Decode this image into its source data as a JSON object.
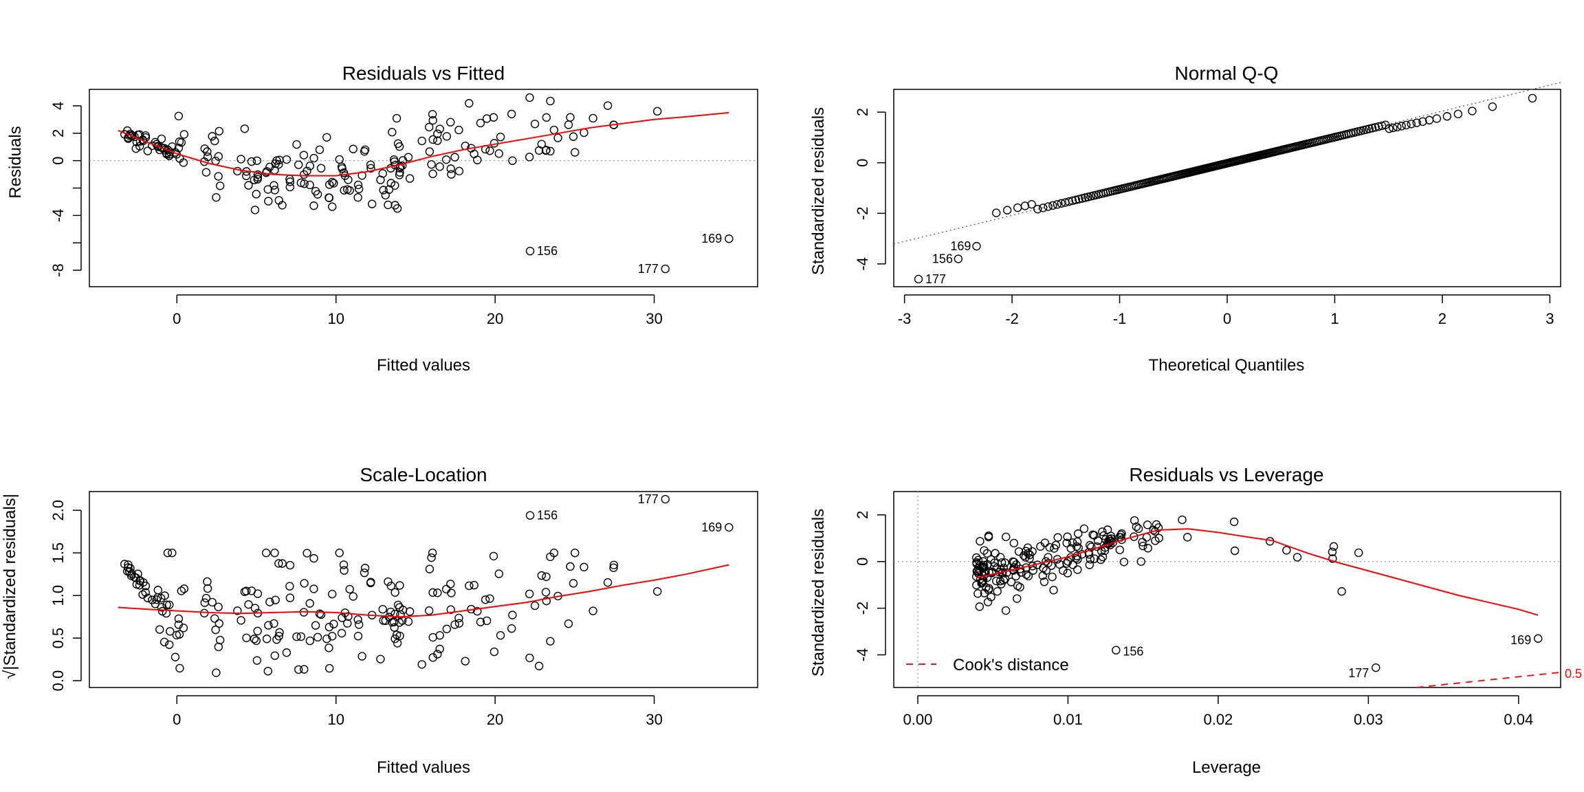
{
  "chart_data": [
    {
      "type": "scatter",
      "title": "Residuals vs Fitted",
      "xlabel": "Fitted values",
      "ylabel": "Residuals",
      "xlim": [
        -5.5,
        36.5
      ],
      "ylim": [
        -9.2,
        5.2
      ],
      "xticks": [
        0,
        10,
        20,
        30
      ],
      "yticks": [
        -8,
        -4,
        0,
        2,
        4
      ],
      "hline": 0,
      "labeled_points": [
        {
          "label": "156",
          "x": 22.2,
          "y": -6.6
        },
        {
          "label": "177",
          "x": 30.7,
          "y": -7.9
        },
        {
          "label": "169",
          "x": 34.7,
          "y": -5.7
        }
      ],
      "smooth": {
        "x": [
          -3.7,
          -2,
          0,
          2,
          4,
          6,
          8,
          10,
          12,
          14,
          16,
          18,
          20,
          22,
          24,
          26,
          28,
          30,
          32,
          34.7
        ],
        "y": [
          2.2,
          1.4,
          0.5,
          -0.2,
          -0.7,
          -1.0,
          -1.1,
          -1.1,
          -0.8,
          -0.3,
          0.3,
          0.8,
          1.2,
          1.6,
          2.0,
          2.4,
          2.7,
          3.0,
          3.2,
          3.5
        ]
      }
    },
    {
      "type": "scatter",
      "title": "Normal Q-Q",
      "xlabel": "Theoretical Quantiles",
      "ylabel": "Standardized residuals",
      "xlim": [
        -3.1,
        3.1
      ],
      "ylim": [
        -4.9,
        2.9
      ],
      "xticks": [
        -3,
        -2,
        -1,
        0,
        1,
        2,
        3
      ],
      "yticks": [
        -4,
        -2,
        0,
        2
      ],
      "labeled_points": [
        {
          "label": "169",
          "x": -2.33,
          "y": -3.3
        },
        {
          "label": "156",
          "x": -2.5,
          "y": -3.8
        },
        {
          "label": "177",
          "x": -2.87,
          "y": -4.6
        }
      ],
      "reference_line": {
        "slope": 1.03,
        "intercept": -0.02
      }
    },
    {
      "type": "scatter",
      "title": "Scale-Location",
      "xlabel": "Fitted values",
      "ylabel": "√|Standardized residuals|",
      "xlim": [
        -5.5,
        36.5
      ],
      "ylim": [
        -0.08,
        2.22
      ],
      "xticks": [
        0,
        10,
        20,
        30
      ],
      "yticks": [
        0.0,
        0.5,
        1.0,
        1.5,
        2.0
      ],
      "labeled_points": [
        {
          "label": "156",
          "x": 22.2,
          "y": 1.94
        },
        {
          "label": "177",
          "x": 30.7,
          "y": 2.13
        },
        {
          "label": "169",
          "x": 34.7,
          "y": 1.8
        }
      ],
      "smooth": {
        "x": [
          -3.7,
          -2,
          0,
          2,
          4,
          6,
          8,
          10,
          12,
          14,
          16,
          18,
          20,
          22,
          24,
          26,
          28,
          30,
          32,
          34.7
        ],
        "y": [
          0.86,
          0.84,
          0.82,
          0.8,
          0.79,
          0.8,
          0.81,
          0.8,
          0.77,
          0.75,
          0.77,
          0.82,
          0.87,
          0.92,
          0.99,
          1.05,
          1.12,
          1.18,
          1.25,
          1.36
        ]
      }
    },
    {
      "type": "scatter",
      "title": "Residuals vs Leverage",
      "xlabel": "Leverage",
      "ylabel": "Standardized residuals",
      "xlim": [
        -0.0016,
        0.0428
      ],
      "ylim": [
        -5.4,
        3.0
      ],
      "xticks": [
        0.0,
        0.01,
        0.02,
        0.03,
        0.04
      ],
      "xtick_labels": [
        "0.00",
        "0.01",
        "0.02",
        "0.03",
        "0.04"
      ],
      "yticks": [
        -4,
        -2,
        0,
        2
      ],
      "hline": 0,
      "vline": 0,
      "labeled_points": [
        {
          "label": "156",
          "x": 0.0132,
          "y": -3.8
        },
        {
          "label": "177",
          "x": 0.0305,
          "y": -4.55
        },
        {
          "label": "169",
          "x": 0.0413,
          "y": -3.3
        }
      ],
      "smooth": {
        "x": [
          0.0039,
          0.006,
          0.008,
          0.01,
          0.012,
          0.014,
          0.016,
          0.018,
          0.02,
          0.022,
          0.0236,
          0.026,
          0.028,
          0.03,
          0.032,
          0.034,
          0.036,
          0.038,
          0.04,
          0.0413
        ],
        "y": [
          -0.7,
          -0.4,
          -0.1,
          0.2,
          0.6,
          1.0,
          1.35,
          1.4,
          1.25,
          1.05,
          0.9,
          0.35,
          -0.05,
          -0.4,
          -0.75,
          -1.1,
          -1.45,
          -1.75,
          -2.05,
          -2.3
        ]
      },
      "cooks_distance": {
        "level": 0.5,
        "label": "0.5",
        "x": [
          0.0332,
          0.0428
        ],
        "y": [
          -5.4,
          -4.75
        ]
      },
      "legend": {
        "label": "Cook's distance",
        "position": "bottom-left"
      }
    }
  ]
}
